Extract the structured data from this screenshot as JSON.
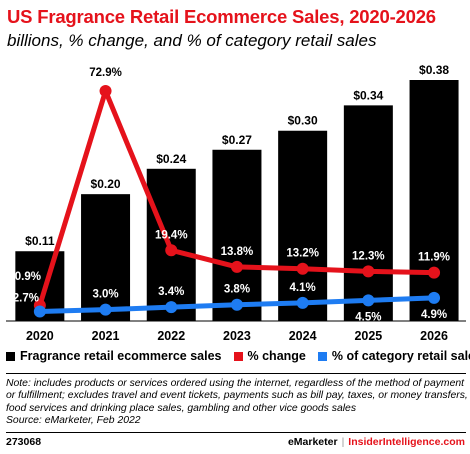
{
  "title": "US Fragrance Retail Ecommerce Sales, 2020-2026",
  "subtitle": "billions, % change, and % of category retail sales",
  "legend": {
    "sales": "Fragrance retail ecommerce sales",
    "change": "% change",
    "share": "% of category retail sales"
  },
  "colors": {
    "bar": "#000000",
    "change": "#e5121b",
    "share": "#1e7cf2",
    "accent": "#e5121b"
  },
  "note": "Note: includes products or services ordered using the internet, regardless of the method of payment or fulfillment; excludes travel and event tickets, payments such as bill pay, taxes, or money transfers, food services and drinking place sales, gambling and other vice goods sales",
  "source": "Source: eMarketer, Feb 2022",
  "footer": {
    "chart_id": "273068",
    "brand1": "eMarketer",
    "separator": "|",
    "brand2": "InsiderIntelligence.com"
  },
  "chart_data": {
    "type": "bar",
    "categories": [
      "2020",
      "2021",
      "2022",
      "2023",
      "2024",
      "2025",
      "2026"
    ],
    "series": [
      {
        "name": "Fragrance retail ecommerce sales",
        "type": "bar",
        "values": [
          0.11,
          0.2,
          0.24,
          0.27,
          0.3,
          0.34,
          0.38
        ],
        "labels": [
          "$0.11",
          "$0.20",
          "$0.24",
          "$0.27",
          "$0.30",
          "$0.34",
          "$0.38"
        ]
      },
      {
        "name": "% change",
        "type": "line",
        "values": [
          0.9,
          72.9,
          19.4,
          13.8,
          13.2,
          12.3,
          11.9
        ],
        "labels": [
          "0.9%",
          "72.9%",
          "19.4%",
          "13.8%",
          "13.2%",
          "12.3%",
          "11.9%"
        ]
      },
      {
        "name": "% of category retail sales",
        "type": "line",
        "values": [
          2.7,
          3.0,
          3.4,
          3.8,
          4.1,
          4.5,
          4.9
        ],
        "labels": [
          "2.7%",
          "3.0%",
          "3.4%",
          "3.8%",
          "4.1%",
          "4.5%",
          "4.9%"
        ]
      }
    ],
    "legend_position": "bottom"
  }
}
